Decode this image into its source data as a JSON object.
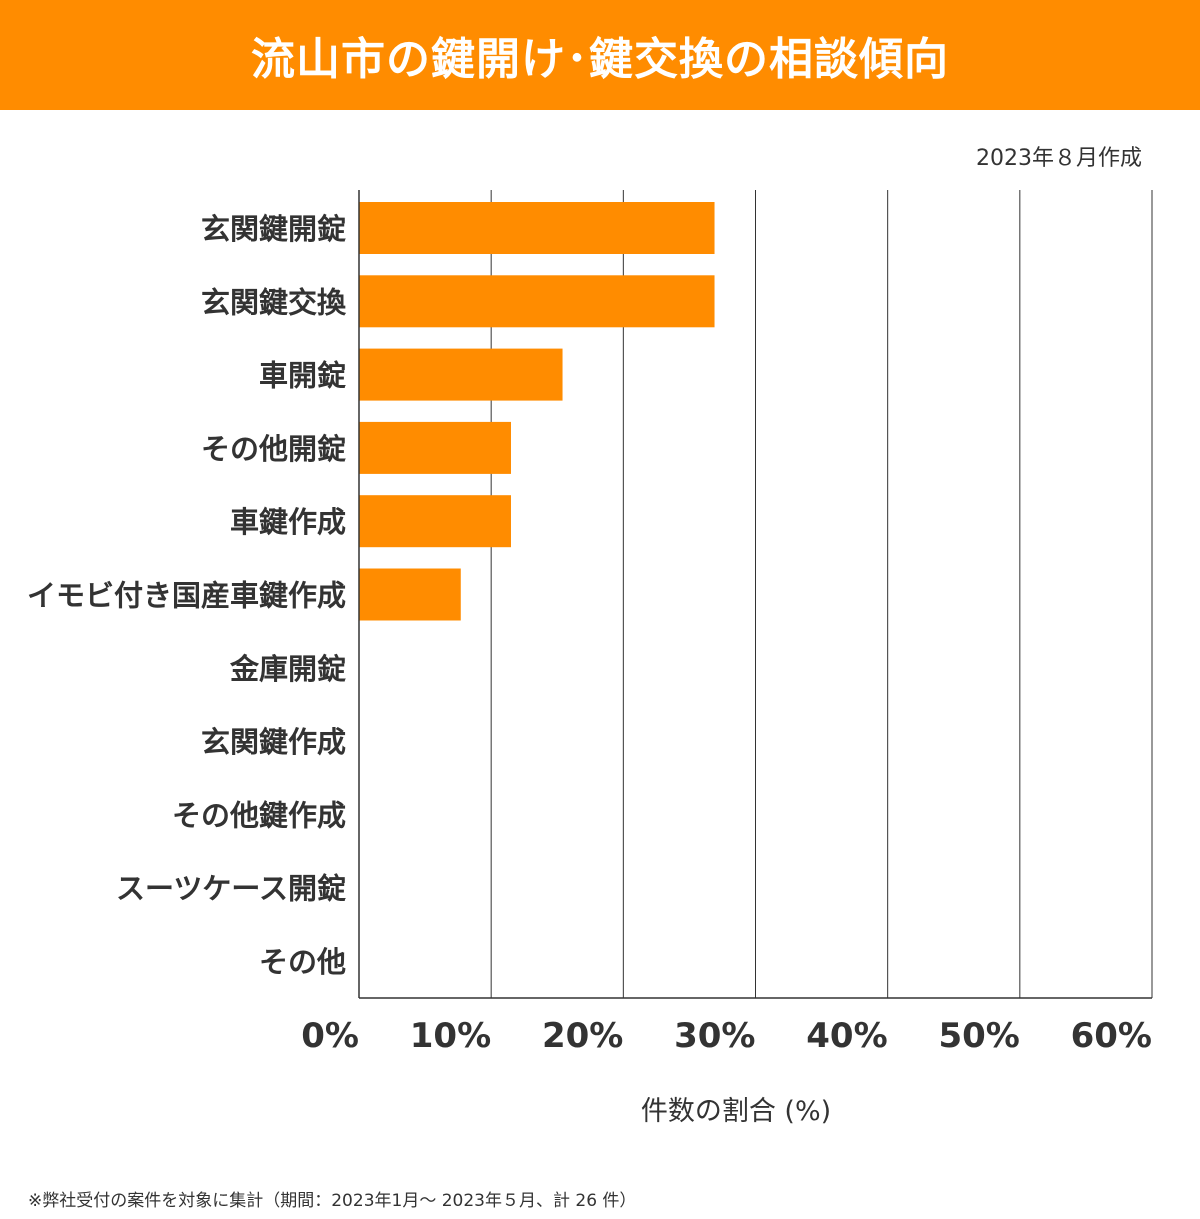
{
  "header": {
    "title": "流山市の鍵開け･鍵交換の相談傾向",
    "date": "2023年８月作成"
  },
  "colors": {
    "accent": "#FF8C00",
    "text": "#333333",
    "grid": "#333333"
  },
  "footnote": "※弊社受付の案件を対象に集計（期間：2023年1月～ 2023年５月、計 26 件）",
  "chart_data": {
    "type": "bar",
    "orientation": "horizontal",
    "categories": [
      "玄関鍵開錠",
      "玄関鍵交換",
      "車開錠",
      "その他開錠",
      "車鍵作成",
      "イモビ付き国産車鍵作成",
      "金庫開錠",
      "玄関鍵作成",
      "その他鍵作成",
      "スーツケース開錠",
      "その他"
    ],
    "values": [
      26.9,
      26.9,
      15.4,
      11.5,
      11.5,
      7.7,
      0,
      0,
      0,
      0,
      0
    ],
    "xlabel": "件数の割合 (%)",
    "xlim": [
      0,
      60
    ],
    "xticks": [
      0,
      10,
      20,
      30,
      40,
      50,
      60
    ],
    "tick_labels": [
      "0%",
      "10%",
      "20%",
      "30%",
      "40%",
      "50%",
      "60%"
    ],
    "grid": true
  }
}
